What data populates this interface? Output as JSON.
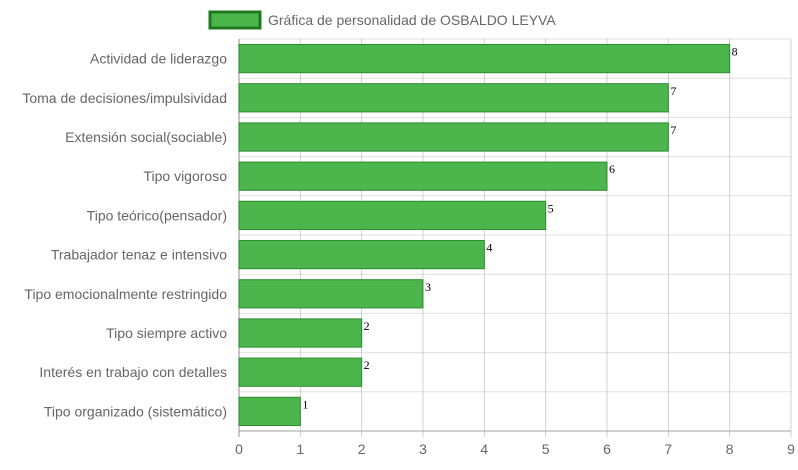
{
  "chart_data": {
    "type": "bar",
    "orientation": "horizontal",
    "categories": [
      "Actividad de liderazgo",
      "Toma de decisiones/impulsividad",
      "Extensión social(sociable)",
      "Tipo vigoroso",
      "Tipo teórico(pensador)",
      "Trabajador tenaz e intensivo",
      "Tipo emocionalmente restringido",
      "Tipo siempre activo",
      "Interés en trabajo con detalles",
      "Tipo organizado (sistemático)"
    ],
    "series": [
      {
        "name": "Gráfica de personalidad de OSBALDO LEYVA",
        "values": [
          8,
          7,
          7,
          6,
          5,
          4,
          3,
          2,
          2,
          1
        ]
      }
    ],
    "xticks": [
      "0",
      "1",
      "2",
      "3",
      "4",
      "5",
      "6",
      "7",
      "8",
      "9"
    ],
    "xlim": [
      0,
      9
    ],
    "grid": true,
    "legend_position": "top",
    "colors": {
      "bar_fill": "#4cb54c",
      "bar_border": "#2e8b2e",
      "legend_box_border": "#1f7a1f",
      "grid": "#e0e0e0",
      "major_grid": "#a0a0a0"
    }
  }
}
